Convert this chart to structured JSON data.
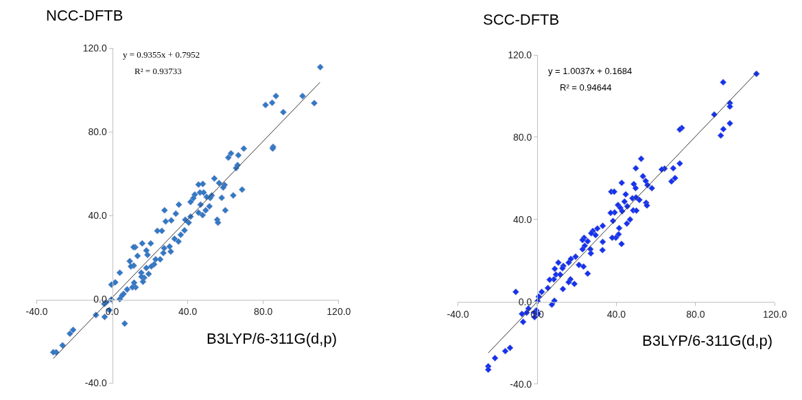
{
  "chart_data": [
    {
      "type": "scatter",
      "title": "NCC-DFTB",
      "xlabel": "B3LYP/6-311G(d,p)",
      "annotations": [
        "y = 0.9355x + 0.7952",
        "R² = 0.93733"
      ],
      "xlim": [
        -40,
        120
      ],
      "ylim": [
        -40,
        120
      ],
      "xticks": [
        {
          "value": -40,
          "label": "-40.0"
        },
        {
          "value": 0,
          "label": "0.0"
        },
        {
          "value": 40,
          "label": "40.0"
        },
        {
          "value": 80,
          "label": "80.0"
        },
        {
          "value": 120,
          "label": "120.0"
        }
      ],
      "yticks": [
        {
          "value": -40,
          "label": "-40.0"
        },
        {
          "value": 0,
          "label": "0.0"
        },
        {
          "value": 40,
          "label": "40.0"
        },
        {
          "value": 80,
          "label": "80.0"
        },
        {
          "value": 120,
          "label": "120.0"
        }
      ],
      "series": [
        {
          "color": "#2f7ac4",
          "marker": "diamond",
          "x": [
            110.2,
            107.0,
            100.8,
            90.6,
            86.7,
            84.7,
            81.2,
            85.2,
            85.0,
            69.7,
            66.8,
            62.9,
            61.5,
            66.4,
            65.6,
            68.8,
            64.1,
            54.1,
            56.6,
            59.5,
            58.8,
            58.0,
            52.7,
            51.9,
            51.5,
            50.0,
            48.0,
            45.7,
            46.5,
            48.4,
            43.7,
            43.0,
            41.5,
            35.3,
            46.8,
            59.9,
            55.6,
            56.0,
            49.5,
            47.9,
            45.7,
            41.5,
            40.5,
            38.7,
            38.3,
            36.3,
            35.1,
            33.7,
            33.0,
            31.3,
            31.0,
            30.4,
            28.3,
            27.7,
            27.5,
            27.1,
            26.3,
            23.9,
            25.4,
            23.0,
            22.2,
            20.7,
            20.4,
            19.3,
            18.7,
            18.1,
            18.1,
            16.9,
            16.3,
            15.9,
            15.4,
            15.5,
            13.4,
            12.2,
            11.3,
            11.4,
            11.6,
            12.4,
            10.7,
            9.9,
            9.3,
            7.9,
            6.0,
            5.2,
            4.0,
            4.0,
            1.6,
            -0.4,
            -0.4,
            -3.1,
            -4.2,
            -1.5,
            -4.0,
            -8.6,
            6.6,
            -20.7,
            -22.4,
            -26.3,
            -29.7,
            -31.2
          ],
          "values": [
            111.0,
            93.8,
            97.2,
            89.5,
            97.2,
            94.0,
            92.9,
            72.9,
            72.1,
            72.1,
            68.9,
            69.8,
            67.8,
            64.2,
            62.8,
            52.5,
            49.7,
            57.8,
            55.6,
            54.7,
            53.5,
            48.6,
            49.7,
            48.5,
            44.5,
            49.0,
            55.2,
            54.9,
            51.1,
            51.1,
            50.1,
            48.4,
            46.6,
            45.3,
            45.3,
            42.6,
            38.1,
            36.7,
            42.6,
            40.3,
            41.5,
            39.6,
            36.7,
            38.1,
            33.0,
            30.9,
            27.7,
            41.0,
            29.0,
            37.8,
            22.9,
            25.3,
            37.3,
            42.6,
            24.5,
            22.2,
            32.8,
            32.8,
            19.2,
            19.2,
            16.8,
            15.8,
            26.8,
            12.2,
            21.3,
            23.4,
            15.1,
            10.4,
            8.5,
            26.8,
            12.8,
            10.9,
            20.8,
            25.0,
            25.0,
            16.2,
            8.0,
            5.8,
            5.8,
            15.8,
            18.3,
            4.8,
            2.7,
            1.9,
            12.8,
            0.2,
            8.2,
            7.1,
            0.0,
            -1.3,
            -2.1,
            -5.1,
            -8.3,
            -7.4,
            -11.5,
            -14.5,
            -16.3,
            -21.9,
            -25.2,
            -25.2
          ]
        },
        {
          "type": "line",
          "color": "#333333",
          "x": [
            -31.2,
            110.0
          ],
          "values": [
            -28.2,
            103.7
          ]
        }
      ]
    },
    {
      "type": "scatter",
      "title": "SCC-DFTB",
      "xlabel": "B3LYP/6-311G(d,p)",
      "annotations": [
        "y = 1.0037x + 0.1684",
        "R² = 0.94644"
      ],
      "xlim": [
        -40,
        120
      ],
      "ylim": [
        -40,
        120
      ],
      "xticks": [
        {
          "value": -40,
          "label": "-40.0"
        },
        {
          "value": 0,
          "label": "0.0"
        },
        {
          "value": 40,
          "label": "40.0"
        },
        {
          "value": 80,
          "label": "80.0"
        },
        {
          "value": 120,
          "label": "120.0"
        }
      ],
      "yticks": [
        {
          "value": -40,
          "label": "-40.0"
        },
        {
          "value": 0,
          "label": "0.0"
        },
        {
          "value": 40,
          "label": "40.0"
        },
        {
          "value": 80,
          "label": "80.0"
        },
        {
          "value": 120,
          "label": "120.0"
        }
      ],
      "series": [
        {
          "color": "#1432f0",
          "marker": "diamond",
          "x": [
            110.7,
            93.9,
            97.3,
            97.3,
            89.4,
            97.3,
            94.0,
            92.7,
            73.0,
            72.0,
            72.0,
            68.7,
            69.6,
            67.8,
            64.3,
            62.9,
            52.5,
            49.8,
            53.4,
            54.8,
            55.7,
            57.9,
            48.8,
            49.7,
            42.7,
            44.7,
            37.4,
            38.9,
            48.1,
            49.9,
            51.6,
            44.1,
            40.8,
            55.0,
            55.4,
            45.5,
            48.5,
            50.1,
            42.0,
            42.9,
            39.1,
            37.1,
            38.3,
            46.9,
            45.3,
            41.4,
            41.1,
            39.7,
            37.9,
            42.6,
            33.1,
            33.1,
            33.0,
            30.4,
            29.5,
            28.1,
            27.3,
            25.5,
            23.7,
            22.9,
            24.0,
            22.9,
            26.9,
            27.1,
            25.5,
            23.4,
            21.1,
            19.4,
            17.0,
            15.9,
            13.2,
            12.8,
            10.7,
            8.9,
            9.5,
            11.6,
            8.4,
            6.3,
            5.4,
            16.8,
            15.9,
            18.8,
            13.0,
            2.3,
            0.8,
            0.2,
            -10.8,
            8.7,
            7.4,
            -4.4,
            -5.3,
            -7.7,
            -7.1,
            -0.4,
            -1.3,
            0.4,
            -1.3,
            -13.7,
            -16.1,
            -21.3,
            -24.7,
            -24.7
          ],
          "values": [
            110.8,
            106.7,
            96.6,
            94.9,
            91.0,
            86.7,
            83.9,
            80.8,
            84.5,
            83.7,
            67.2,
            64.9,
            60.1,
            58.5,
            64.7,
            64.3,
            69.5,
            64.9,
            61.0,
            58.7,
            56.7,
            55.2,
            57.2,
            55.2,
            57.8,
            52.2,
            53.5,
            53.5,
            50.3,
            50.7,
            49.5,
            48.7,
            47.0,
            48.1,
            46.8,
            46.4,
            44.4,
            44.3,
            45.6,
            44.0,
            43.4,
            43.2,
            39.3,
            40.0,
            38.0,
            35.8,
            32.8,
            31.1,
            31.1,
            28.1,
            36.9,
            29.1,
            25.1,
            35.6,
            32.4,
            34.4,
            33.3,
            29.4,
            31.1,
            30.0,
            27.2,
            25.5,
            25.5,
            23.5,
            13.7,
            17.1,
            17.9,
            21.9,
            20.8,
            19.0,
            17.4,
            16.3,
            19.0,
            16.0,
            13.2,
            13.2,
            10.9,
            10.7,
            6.7,
            10.9,
            9.5,
            8.7,
            6.2,
            4.8,
            2.5,
            0.3,
            4.8,
            0.5,
            -1.4,
            -3.3,
            -5.3,
            -5.9,
            -9.8,
            -4.2,
            -5.3,
            -5.9,
            -7.5,
            -22.4,
            -24.0,
            -27.4,
            -31.4,
            -33.0
          ]
        },
        {
          "type": "line",
          "color": "#333333",
          "x": [
            -24.7,
            110.7
          ],
          "values": [
            -24.9,
            111.3
          ]
        }
      ]
    }
  ]
}
